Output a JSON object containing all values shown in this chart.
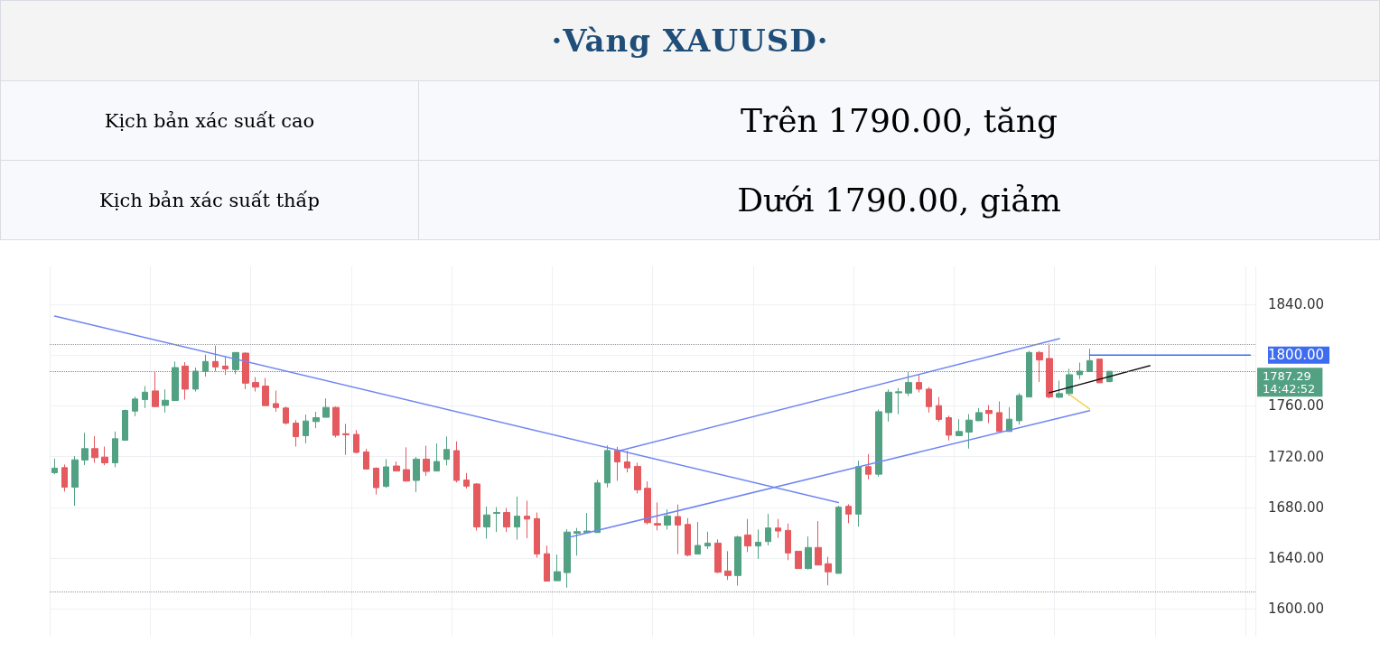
{
  "chart_data": {
    "type": "candlestick",
    "title": "·Vàng XAUUSD·",
    "annotations": [
      "Kịch bản xác suất cao",
      "Trên 1790.00, tăng",
      "Kịch bản xác suất thấp",
      "Dưới 1790.00, giảm",
      "14:42:52"
    ],
    "categories": [
      null,
      null,
      null,
      null,
      null,
      null,
      null,
      null,
      null,
      null,
      null,
      null,
      null,
      null,
      null,
      null,
      null,
      null,
      null,
      null,
      null,
      null,
      null,
      null,
      null,
      null,
      null,
      null,
      null,
      null,
      null,
      null,
      null,
      null,
      null,
      null,
      null,
      null,
      null,
      null,
      null,
      null,
      null,
      null,
      null,
      null,
      null,
      null,
      null,
      null,
      null,
      null,
      null,
      null,
      null,
      null,
      null,
      null,
      null,
      null,
      null,
      null,
      null,
      null,
      null,
      null,
      null,
      null,
      null,
      null,
      null,
      null,
      null,
      null,
      null,
      null,
      null,
      null,
      null,
      null,
      null,
      null,
      null,
      null,
      null,
      null,
      null,
      null,
      null,
      null,
      null,
      null,
      null,
      null,
      null,
      null,
      null,
      null,
      null,
      null,
      null,
      null,
      null,
      null,
      null,
      null,
      null,
      null,
      null,
      null,
      null,
      null,
      null,
      null,
      null,
      null,
      null,
      null,
      null,
      null
    ],
    "ohlc": [
      [
        1707.3,
        1718.4,
        1706.1,
        1710.9
      ],
      [
        1711.3,
        1713.7,
        1692.4,
        1695.9
      ],
      [
        1695.9,
        1720.3,
        1681.2,
        1717.5
      ],
      [
        1717.3,
        1738.8,
        1713.2,
        1726.3
      ],
      [
        1726.3,
        1736.2,
        1715.1,
        1719.2
      ],
      [
        1719.6,
        1727.9,
        1713.2,
        1715.1
      ],
      [
        1715.1,
        1739.8,
        1711.6,
        1734.1
      ],
      [
        1732.9,
        1757.1,
        1732.9,
        1756.4
      ],
      [
        1755.9,
        1767.3,
        1751.9,
        1765.4
      ],
      [
        1764.9,
        1775.6,
        1758.3,
        1770.8
      ],
      [
        1771.8,
        1787.4,
        1759.4,
        1759.4
      ],
      [
        1760.4,
        1773.0,
        1754.7,
        1764.4
      ],
      [
        1764.2,
        1795.0,
        1764.2,
        1790.2
      ],
      [
        1791.4,
        1794.5,
        1764.9,
        1773.2
      ],
      [
        1773.2,
        1790.2,
        1771.3,
        1787.4
      ],
      [
        1787.2,
        1800.4,
        1783.1,
        1795.0
      ],
      [
        1795.0,
        1807.5,
        1787.2,
        1790.7
      ],
      [
        1791.4,
        1799.0,
        1784.3,
        1789.1
      ],
      [
        1788.6,
        1802.1,
        1785.0,
        1802.1
      ],
      [
        1801.6,
        1802.1,
        1773.2,
        1777.9
      ],
      [
        1778.4,
        1782.7,
        1771.3,
        1774.8
      ],
      [
        1775.6,
        1782.0,
        1760.2,
        1760.2
      ],
      [
        1761.8,
        1772.0,
        1755.4,
        1758.7
      ],
      [
        1758.3,
        1759.4,
        1745.2,
        1746.4
      ],
      [
        1746.4,
        1748.8,
        1727.9,
        1735.7
      ],
      [
        1736.5,
        1753.1,
        1730.5,
        1748.1
      ],
      [
        1747.6,
        1755.4,
        1742.4,
        1750.7
      ],
      [
        1751.0,
        1765.9,
        1751.0,
        1758.8
      ],
      [
        1758.8,
        1759.5,
        1735.1,
        1736.8
      ],
      [
        1738.0,
        1745.8,
        1721.4,
        1737.2
      ],
      [
        1737.5,
        1741.0,
        1722.5,
        1723.3
      ],
      [
        1723.7,
        1726.1,
        1710.2,
        1710.2
      ],
      [
        1710.9,
        1711.4,
        1690.1,
        1695.5
      ],
      [
        1696.5,
        1718.0,
        1695.5,
        1711.9
      ],
      [
        1712.6,
        1716.1,
        1708.6,
        1708.6
      ],
      [
        1709.7,
        1727.3,
        1700.3,
        1700.7
      ],
      [
        1701.2,
        1719.7,
        1692.0,
        1718.0
      ],
      [
        1718.0,
        1728.5,
        1704.8,
        1708.3
      ],
      [
        1708.6,
        1730.4,
        1708.6,
        1716.1
      ],
      [
        1717.8,
        1735.8,
        1713.1,
        1725.6
      ],
      [
        1724.7,
        1732.0,
        1699.6,
        1701.2
      ],
      [
        1701.5,
        1707.1,
        1694.8,
        1696.7
      ],
      [
        1698.4,
        1699.1,
        1661.6,
        1664.5
      ],
      [
        1664.5,
        1680.6,
        1655.3,
        1674.0
      ],
      [
        1675.2,
        1680.1,
        1660.5,
        1675.9
      ],
      [
        1675.9,
        1679.4,
        1660.5,
        1664.5
      ],
      [
        1664.5,
        1688.4,
        1654.5,
        1673.0
      ],
      [
        1673.0,
        1685.3,
        1655.7,
        1670.7
      ],
      [
        1671.1,
        1675.9,
        1640.3,
        1643.2
      ],
      [
        1643.4,
        1649.8,
        1621.8,
        1621.8
      ],
      [
        1622.1,
        1642.7,
        1622.1,
        1629.2
      ],
      [
        1628.5,
        1662.8,
        1616.6,
        1660.5
      ],
      [
        1659.6,
        1663.7,
        1641.9,
        1660.8
      ],
      [
        1660.1,
        1675.5,
        1660.1,
        1661.3
      ],
      [
        1660.1,
        1701.6,
        1660.1,
        1699.2
      ],
      [
        1699.2,
        1728.8,
        1695.7,
        1724.8
      ],
      [
        1724.8,
        1727.7,
        1700.9,
        1715.8
      ],
      [
        1715.8,
        1724.8,
        1707.5,
        1711.1
      ],
      [
        1712.3,
        1715.1,
        1690.9,
        1693.8
      ],
      [
        1695.0,
        1700.4,
        1666.5,
        1667.9
      ],
      [
        1667.2,
        1683.8,
        1661.8,
        1666.0
      ],
      [
        1666.0,
        1678.4,
        1662.5,
        1673.2
      ],
      [
        1672.7,
        1682.2,
        1643.1,
        1666.0
      ],
      [
        1666.5,
        1671.5,
        1641.2,
        1642.3
      ],
      [
        1643.1,
        1668.4,
        1643.1,
        1649.9
      ],
      [
        1649.5,
        1660.8,
        1647.1,
        1651.8
      ],
      [
        1651.8,
        1654.7,
        1628.1,
        1628.8
      ],
      [
        1629.8,
        1645.4,
        1622.7,
        1626.2
      ],
      [
        1626.2,
        1657.7,
        1618.2,
        1656.6
      ],
      [
        1658.2,
        1670.8,
        1644.7,
        1649.5
      ],
      [
        1649.5,
        1662.5,
        1639.3,
        1652.5
      ],
      [
        1653.0,
        1674.8,
        1649.9,
        1663.7
      ],
      [
        1663.7,
        1670.8,
        1655.9,
        1661.3
      ],
      [
        1661.8,
        1667.2,
        1638.3,
        1644.0
      ],
      [
        1645.4,
        1645.4,
        1631.7,
        1631.7
      ],
      [
        1631.7,
        1657.0,
        1631.0,
        1648.3
      ],
      [
        1648.3,
        1669.1,
        1634.5,
        1634.5
      ],
      [
        1635.5,
        1641.0,
        1618.5,
        1629.1
      ],
      [
        1627.9,
        1681.2,
        1627.9,
        1680.1
      ],
      [
        1680.8,
        1682.4,
        1667.5,
        1674.6
      ],
      [
        1674.6,
        1716.8,
        1664.7,
        1712.1
      ],
      [
        1712.1,
        1722.0,
        1702.1,
        1706.1
      ],
      [
        1706.1,
        1757.1,
        1704.2,
        1755.4
      ],
      [
        1754.7,
        1773.0,
        1747.6,
        1770.8
      ],
      [
        1770.3,
        1774.1,
        1753.5,
        1771.1
      ],
      [
        1770.1,
        1786.7,
        1767.7,
        1778.4
      ],
      [
        1778.4,
        1784.8,
        1770.6,
        1773.2
      ],
      [
        1773.2,
        1774.8,
        1754.7,
        1759.4
      ],
      [
        1760.2,
        1767.0,
        1747.6,
        1749.3
      ],
      [
        1750.7,
        1752.3,
        1732.7,
        1736.9
      ],
      [
        1736.5,
        1749.5,
        1736.5,
        1739.8
      ],
      [
        1739.3,
        1753.5,
        1726.3,
        1748.8
      ],
      [
        1748.3,
        1758.3,
        1748.3,
        1754.7
      ],
      [
        1756.4,
        1760.6,
        1746.4,
        1754.0
      ],
      [
        1754.7,
        1763.5,
        1739.8,
        1739.8
      ],
      [
        1739.8,
        1759.0,
        1739.8,
        1749.5
      ],
      [
        1748.3,
        1770.1,
        1745.2,
        1768.2
      ],
      [
        1767.0,
        1803.3,
        1767.0,
        1802.1
      ],
      [
        1802.1,
        1803.3,
        1778.9,
        1796.2
      ],
      [
        1797.4,
        1809.2,
        1765.8,
        1767.0
      ],
      [
        1766.8,
        1779.9,
        1766.4,
        1769.7
      ],
      [
        1769.7,
        1789.3,
        1768.0,
        1784.6
      ],
      [
        1784.6,
        1794.1,
        1781.0,
        1787.4
      ],
      [
        1787.0,
        1805.2,
        1787.0,
        1795.7
      ],
      [
        1796.9,
        1796.9,
        1778.2,
        1778.2
      ],
      [
        1779.1,
        1787.3,
        1778.7,
        1787.29
      ],
      null,
      null,
      null,
      null,
      null,
      null,
      null,
      null,
      null,
      null,
      null,
      null,
      null,
      null
    ],
    "colors": [
      "#53a183",
      "#e45a5f",
      "#53a183",
      "#53a183",
      "#e45a5f",
      "#e45a5f",
      "#53a183",
      "#53a183",
      "#53a183",
      "#53a183",
      "#e45a5f",
      "#53a183",
      "#53a183",
      "#e45a5f",
      "#53a183",
      "#53a183",
      "#e45a5f",
      "#e45a5f",
      "#53a183",
      "#e45a5f",
      "#e45a5f",
      "#e45a5f",
      "#e45a5f",
      "#e45a5f",
      "#e45a5f",
      "#53a183",
      "#53a183",
      "#53a183",
      "#e45a5f",
      "#e45a5f",
      "#e45a5f",
      "#e45a5f",
      "#e45a5f",
      "#53a183",
      "#e45a5f",
      "#e45a5f",
      "#53a183",
      "#e45a5f",
      "#53a183",
      "#53a183",
      "#e45a5f",
      "#e45a5f",
      "#e45a5f",
      "#53a183",
      "#53a183",
      "#e45a5f",
      "#53a183",
      "#e45a5f",
      "#e45a5f",
      "#e45a5f",
      "#53a183",
      "#53a183",
      "#53a183",
      "#53a183",
      "#53a183",
      "#53a183",
      "#e45a5f",
      "#e45a5f",
      "#e45a5f",
      "#e45a5f",
      "#e45a5f",
      "#53a183",
      "#e45a5f",
      "#e45a5f",
      "#53a183",
      "#53a183",
      "#e45a5f",
      "#e45a5f",
      "#53a183",
      "#e45a5f",
      "#53a183",
      "#53a183",
      "#e45a5f",
      "#e45a5f",
      "#e45a5f",
      "#53a183",
      "#e45a5f",
      "#e45a5f",
      "#53a183",
      "#e45a5f",
      "#53a183",
      "#e45a5f",
      "#53a183",
      "#53a183",
      "#53a183",
      "#53a183",
      "#e45a5f",
      "#e45a5f",
      "#e45a5f",
      "#e45a5f",
      "#53a183",
      "#53a183",
      "#53a183",
      "#e45a5f",
      "#e45a5f",
      "#53a183",
      "#53a183",
      "#53a183",
      "#e45a5f",
      "#e45a5f",
      "#53a183",
      "#53a183",
      "#53a183",
      "#53a183",
      "#e45a5f",
      "#53a183",
      null,
      null,
      null,
      null,
      null,
      null,
      null,
      null,
      null,
      null,
      null,
      null,
      null,
      null
    ],
    "series": [
      {
        "type": "line",
        "color": "#6f86f2",
        "values": [
          1830.8,
          null,
          null,
          null,
          null,
          null,
          null,
          null,
          null,
          null,
          null,
          null,
          null,
          null,
          null,
          null,
          null,
          null,
          null,
          null,
          null,
          null,
          null,
          null,
          null,
          null,
          null,
          null,
          null,
          null,
          null,
          null,
          null,
          null,
          null,
          null,
          null,
          null,
          null,
          null,
          null,
          null,
          null,
          null,
          null,
          null,
          null,
          null,
          null,
          null,
          null,
          null,
          null,
          null,
          null,
          null,
          null,
          null,
          null,
          null,
          null,
          null,
          null,
          null,
          null,
          null,
          null,
          null,
          null,
          null,
          null,
          null,
          null,
          null,
          null,
          null,
          null,
          null,
          1683.7,
          null,
          null,
          null,
          null,
          null,
          null,
          null,
          null,
          null,
          null,
          null,
          null,
          null,
          null,
          null,
          null,
          null,
          null,
          null,
          null,
          null,
          null,
          null,
          null,
          null,
          null,
          null,
          null,
          null,
          null,
          null,
          null,
          null,
          null,
          null,
          null,
          null,
          null,
          null,
          null,
          null
        ]
      },
      {
        "type": "line",
        "color": "#6f86f2",
        "values": [
          null,
          null,
          null,
          null,
          null,
          null,
          null,
          null,
          null,
          null,
          null,
          null,
          null,
          null,
          null,
          null,
          null,
          null,
          null,
          null,
          null,
          null,
          null,
          null,
          null,
          null,
          null,
          null,
          null,
          null,
          null,
          null,
          null,
          null,
          null,
          null,
          null,
          null,
          null,
          null,
          null,
          null,
          null,
          null,
          null,
          null,
          null,
          null,
          null,
          null,
          null,
          null,
          null,
          null,
          null,
          null,
          1724.2,
          null,
          null,
          null,
          null,
          null,
          null,
          null,
          null,
          null,
          null,
          null,
          null,
          null,
          null,
          null,
          null,
          null,
          null,
          null,
          null,
          null,
          null,
          null,
          null,
          null,
          null,
          null,
          null,
          null,
          null,
          null,
          null,
          null,
          null,
          null,
          null,
          null,
          null,
          null,
          null,
          null,
          null,
          null,
          1813.0,
          null,
          null,
          null,
          null,
          null,
          null,
          null,
          null,
          null,
          null,
          null,
          null,
          null,
          null,
          null,
          null,
          null,
          null,
          null
        ]
      },
      {
        "type": "line",
        "color": "#6f86f2",
        "values": [
          null,
          null,
          null,
          null,
          null,
          null,
          null,
          null,
          null,
          null,
          null,
          null,
          null,
          null,
          null,
          null,
          null,
          null,
          null,
          null,
          null,
          null,
          null,
          null,
          null,
          null,
          null,
          null,
          null,
          null,
          null,
          null,
          null,
          null,
          null,
          null,
          null,
          null,
          null,
          null,
          null,
          null,
          null,
          null,
          null,
          null,
          null,
          null,
          null,
          null,
          null,
          1656.0,
          null,
          null,
          null,
          null,
          null,
          null,
          null,
          null,
          null,
          null,
          null,
          null,
          null,
          null,
          null,
          null,
          null,
          null,
          null,
          null,
          null,
          null,
          null,
          null,
          null,
          null,
          null,
          null,
          null,
          null,
          null,
          null,
          null,
          null,
          null,
          null,
          null,
          null,
          null,
          null,
          null,
          null,
          null,
          null,
          null,
          null,
          null,
          null,
          null,
          null,
          null,
          1756.2,
          null,
          null,
          null,
          null,
          null,
          null,
          null,
          null,
          null,
          null,
          null,
          null,
          null,
          null,
          null,
          null
        ]
      },
      {
        "type": "line",
        "color": "#111111",
        "values": [
          null,
          null,
          null,
          null,
          null,
          null,
          null,
          null,
          null,
          null,
          null,
          null,
          null,
          null,
          null,
          null,
          null,
          null,
          null,
          null,
          null,
          null,
          null,
          null,
          null,
          null,
          null,
          null,
          null,
          null,
          null,
          null,
          null,
          null,
          null,
          null,
          null,
          null,
          null,
          null,
          null,
          null,
          null,
          null,
          null,
          null,
          null,
          null,
          null,
          null,
          null,
          null,
          null,
          null,
          null,
          null,
          null,
          null,
          null,
          null,
          null,
          null,
          null,
          null,
          null,
          null,
          null,
          null,
          null,
          null,
          null,
          null,
          null,
          null,
          null,
          null,
          null,
          null,
          null,
          null,
          null,
          null,
          null,
          null,
          null,
          null,
          null,
          null,
          null,
          null,
          null,
          null,
          null,
          null,
          null,
          null,
          null,
          null,
          null,
          1770.4,
          null,
          null,
          null,
          null,
          null,
          null,
          null,
          null,
          null,
          1791.7,
          null,
          null,
          null,
          null,
          null,
          null,
          null,
          null,
          null,
          null
        ]
      },
      {
        "type": "line",
        "color": "#f2d35a",
        "values": [
          null,
          null,
          null,
          null,
          null,
          null,
          null,
          null,
          null,
          null,
          null,
          null,
          null,
          null,
          null,
          null,
          null,
          null,
          null,
          null,
          null,
          null,
          null,
          null,
          null,
          null,
          null,
          null,
          null,
          null,
          null,
          null,
          null,
          null,
          null,
          null,
          null,
          null,
          null,
          null,
          null,
          null,
          null,
          null,
          null,
          null,
          null,
          null,
          null,
          null,
          null,
          null,
          null,
          null,
          null,
          null,
          null,
          null,
          null,
          null,
          null,
          null,
          null,
          null,
          null,
          null,
          null,
          null,
          null,
          null,
          null,
          null,
          null,
          null,
          null,
          null,
          null,
          null,
          null,
          null,
          null,
          null,
          null,
          null,
          null,
          null,
          null,
          null,
          null,
          null,
          null,
          null,
          null,
          null,
          null,
          null,
          null,
          null,
          null,
          null,
          null,
          1768.9,
          null,
          1757.5,
          null,
          null,
          null,
          null,
          null,
          null,
          null,
          null,
          null,
          null,
          null,
          null,
          null,
          null,
          null,
          null
        ]
      },
      {
        "type": "line",
        "color": "#3d6cf0",
        "values": [
          null,
          null,
          null,
          null,
          null,
          null,
          null,
          null,
          null,
          null,
          null,
          null,
          null,
          null,
          null,
          null,
          null,
          null,
          null,
          null,
          null,
          null,
          null,
          null,
          null,
          null,
          null,
          null,
          null,
          null,
          null,
          null,
          null,
          null,
          null,
          null,
          null,
          null,
          null,
          null,
          null,
          null,
          null,
          null,
          null,
          null,
          null,
          null,
          null,
          null,
          null,
          null,
          null,
          null,
          null,
          null,
          null,
          null,
          null,
          null,
          null,
          null,
          null,
          null,
          null,
          null,
          null,
          null,
          null,
          null,
          null,
          null,
          null,
          null,
          null,
          null,
          null,
          null,
          null,
          null,
          null,
          null,
          null,
          null,
          null,
          null,
          null,
          null,
          null,
          null,
          null,
          null,
          null,
          null,
          null,
          null,
          null,
          null,
          null,
          null,
          null,
          null,
          null,
          1800,
          1800,
          1800,
          1800,
          1800,
          1800,
          1800,
          1800,
          1800,
          1800,
          1800,
          1800,
          1800,
          1800,
          1800,
          1800,
          1800
        ]
      }
    ],
    "ylim": [
      1578,
      1870
    ],
    "yticks": [
      {
        "value": 1600,
        "label": "1600.00"
      },
      {
        "value": 1640,
        "label": "1640.00"
      },
      {
        "value": 1680,
        "label": "1680.00"
      },
      {
        "value": 1720,
        "label": "1720.00"
      },
      {
        "value": 1760,
        "label": "1760.00"
      },
      {
        "value": 1800,
        "label": "1800.00"
      },
      {
        "value": 1840,
        "label": "1840.00"
      }
    ],
    "ref_lines": [
      {
        "axis": "y",
        "value": 1808.7,
        "color": "#9598a1",
        "line_style": "dotted"
      },
      {
        "axis": "y",
        "value": 1613.4,
        "color": "#9598a1",
        "line_style": "dotted"
      },
      {
        "axis": "y",
        "value": 1787.29,
        "label": "1787.29",
        "color": "#e45a5f",
        "line_style": "dotted"
      }
    ],
    "grid": true,
    "tick_labels": "y"
  }
}
